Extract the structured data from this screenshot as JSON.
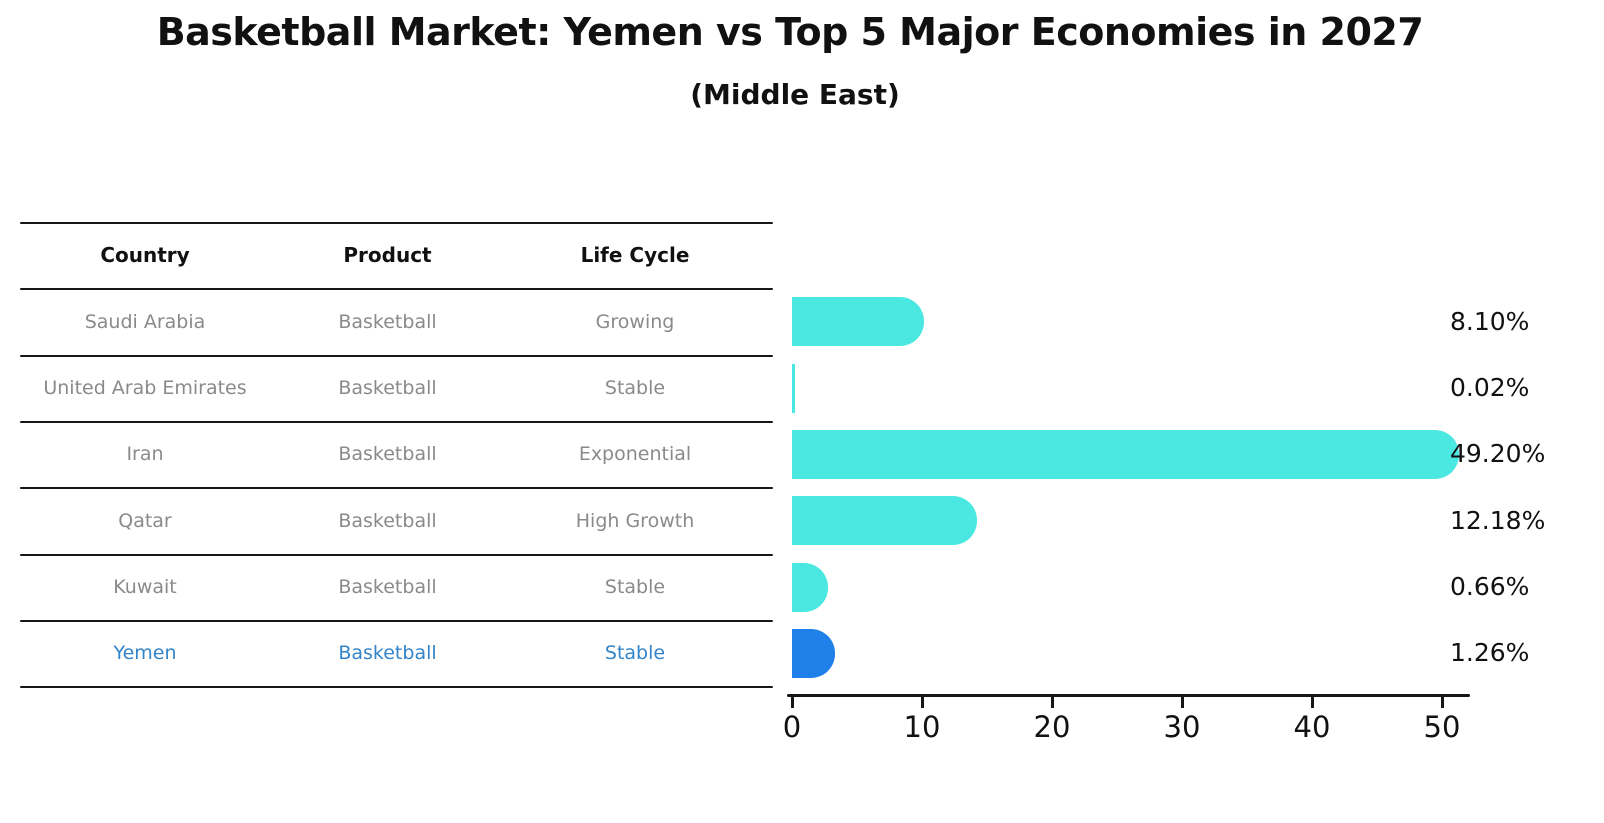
{
  "title": "Basketball Market: Yemen vs Top 5 Major Economies in 2027",
  "subtitle": "(Middle East)",
  "table": {
    "headers": [
      "Country",
      "Product",
      "Life Cycle"
    ],
    "rows": [
      {
        "country": "Saudi Arabia",
        "product": "Basketball",
        "life_cycle": "Growing",
        "highlight": false
      },
      {
        "country": "United Arab Emirates",
        "product": "Basketball",
        "life_cycle": "Stable",
        "highlight": false
      },
      {
        "country": "Iran",
        "product": "Basketball",
        "life_cycle": "Exponential",
        "highlight": false
      },
      {
        "country": "Qatar",
        "product": "Basketball",
        "life_cycle": "High Growth",
        "highlight": false
      },
      {
        "country": "Kuwait",
        "product": "Basketball",
        "life_cycle": "Stable",
        "highlight": false
      },
      {
        "country": "Yemen",
        "product": "Basketball",
        "life_cycle": "Stable",
        "highlight": true
      }
    ]
  },
  "chart_data": {
    "type": "bar",
    "orientation": "horizontal",
    "title": "Basketball Market: Yemen vs Top 5 Major Economies in 2027",
    "subtitle": "(Middle East)",
    "categories": [
      "Saudi Arabia",
      "United Arab Emirates",
      "Iran",
      "Qatar",
      "Kuwait",
      "Yemen"
    ],
    "values": [
      8.1,
      0.02,
      49.2,
      12.18,
      0.66,
      1.26
    ],
    "value_labels": [
      "8.10%",
      "0.02%",
      "49.20%",
      "12.18%",
      "0.66%",
      "1.26%"
    ],
    "x_ticks": [
      0,
      10,
      20,
      30,
      40,
      50
    ],
    "xlim": [
      0,
      52
    ],
    "xlabel": "",
    "ylabel": "",
    "grid": false,
    "legend": false,
    "highlight_index": 5
  },
  "colors": {
    "bar": "#4be8e1",
    "highlight_bar": "#1e80e8",
    "highlight_text": "#3384c8",
    "row_text": "#8a8a8a",
    "header_text": "#111111",
    "axis": "#161616",
    "background": "#ffffff"
  }
}
